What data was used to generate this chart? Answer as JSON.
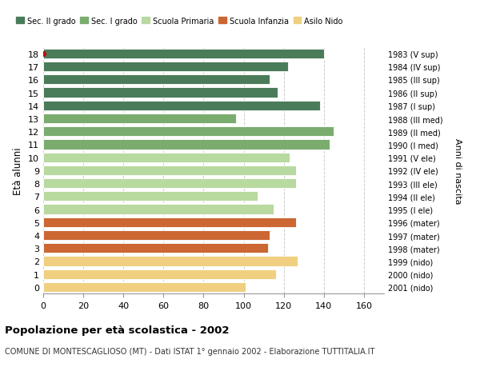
{
  "ages": [
    18,
    17,
    16,
    15,
    14,
    13,
    12,
    11,
    10,
    9,
    8,
    7,
    6,
    5,
    4,
    3,
    2,
    1,
    0
  ],
  "values": [
    140,
    122,
    113,
    117,
    138,
    96,
    145,
    143,
    123,
    126,
    126,
    107,
    115,
    126,
    113,
    112,
    127,
    116,
    101
  ],
  "right_labels": [
    "1983 (V sup)",
    "1984 (IV sup)",
    "1985 (III sup)",
    "1986 (II sup)",
    "1987 (I sup)",
    "1988 (III med)",
    "1989 (II med)",
    "1990 (I med)",
    "1991 (V ele)",
    "1992 (IV ele)",
    "1993 (III ele)",
    "1994 (II ele)",
    "1995 (I ele)",
    "1996 (mater)",
    "1997 (mater)",
    "1998 (mater)",
    "1999 (nido)",
    "2000 (nido)",
    "2001 (nido)"
  ],
  "colors": [
    "#4a7c59",
    "#4a7c59",
    "#4a7c59",
    "#4a7c59",
    "#4a7c59",
    "#7aac6e",
    "#7aac6e",
    "#7aac6e",
    "#b8d9a0",
    "#b8d9a0",
    "#b8d9a0",
    "#b8d9a0",
    "#b8d9a0",
    "#cc6633",
    "#cc6633",
    "#cc6633",
    "#f0d080",
    "#f0d080",
    "#f0d080"
  ],
  "legend_labels": [
    "Sec. II grado",
    "Sec. I grado",
    "Scuola Primaria",
    "Scuola Infanzia",
    "Asilo Nido"
  ],
  "legend_colors": [
    "#4a7c59",
    "#7aac6e",
    "#b8d9a0",
    "#cc6633",
    "#f0d080"
  ],
  "ylabel": "Età alunni",
  "right_ylabel": "Anni di nascita",
  "title": "Popolazione per età scolastica - 2002",
  "subtitle": "COMUNE DI MONTESCAGLIOSO (MT) - Dati ISTAT 1° gennaio 2002 - Elaborazione TUTTITALIA.IT",
  "xlim": [
    0,
    170
  ],
  "xticks": [
    0,
    20,
    40,
    60,
    80,
    100,
    120,
    140,
    160
  ],
  "bar_height": 0.75,
  "bg_color": "#ffffff",
  "grid_color": "#cccccc",
  "age18_dot_color": "#cc0000"
}
